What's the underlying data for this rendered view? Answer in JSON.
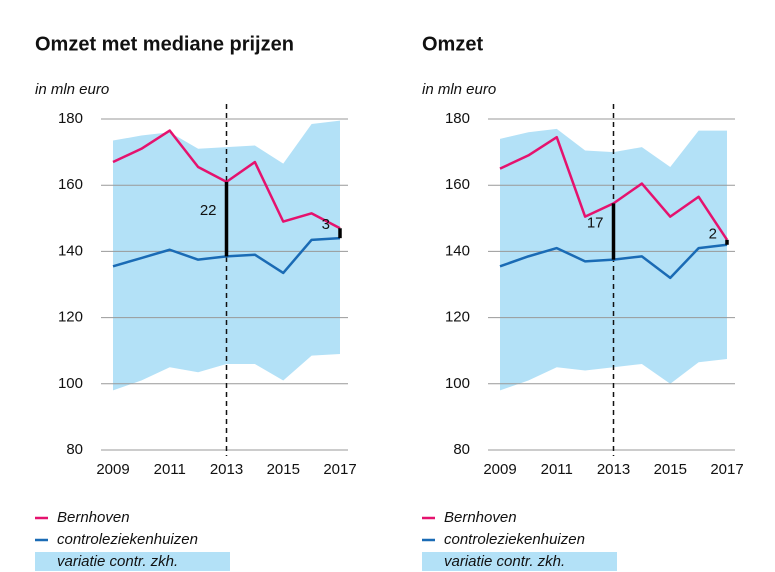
{
  "chart_data": [
    {
      "type": "line",
      "title": "Omzet met mediane prijzen",
      "y_label": "in mln euro",
      "x": [
        2009,
        2010,
        2011,
        2012,
        2013,
        2014,
        2015,
        2016,
        2017
      ],
      "xlim": [
        2009,
        2017
      ],
      "xticks": [
        2009,
        2011,
        2013,
        2015,
        2017
      ],
      "ylim": [
        80,
        180
      ],
      "yticks": [
        80,
        100,
        120,
        140,
        160,
        180
      ],
      "grid": true,
      "reference_line_x": 2013,
      "band": {
        "name": "variatie contr. zkh.",
        "color": "#b3e1f7",
        "lower": [
          98,
          101,
          105,
          103.5,
          106,
          106,
          101,
          108.5,
          109
        ],
        "upper": [
          173.5,
          175,
          176,
          171,
          171.5,
          172,
          166.5,
          178.5,
          179.5
        ]
      },
      "series": [
        {
          "name": "Bernhoven",
          "color": "#e5126e",
          "values": [
            167,
            171,
            176.5,
            165.5,
            161,
            167,
            149,
            151.5,
            147
          ]
        },
        {
          "name": "controleziekenhuizen",
          "color": "#1a6bb5",
          "values": [
            135.5,
            138,
            140.5,
            137.5,
            138.5,
            139,
            133.5,
            143.5,
            144
          ]
        }
      ],
      "annotations": [
        {
          "text": "22",
          "x": 2013
        },
        {
          "text": "3",
          "x": 2017
        }
      ]
    },
    {
      "type": "line",
      "title": "Omzet",
      "y_label": "in mln euro",
      "x": [
        2009,
        2010,
        2011,
        2012,
        2013,
        2014,
        2015,
        2016,
        2017
      ],
      "xlim": [
        2009,
        2017
      ],
      "xticks": [
        2009,
        2011,
        2013,
        2015,
        2017
      ],
      "ylim": [
        80,
        180
      ],
      "yticks": [
        80,
        100,
        120,
        140,
        160,
        180
      ],
      "grid": true,
      "reference_line_x": 2013,
      "band": {
        "name": "variatie contr. zkh.",
        "color": "#b3e1f7",
        "lower": [
          98,
          101,
          105,
          104,
          105,
          106,
          100,
          106.5,
          107.5
        ],
        "upper": [
          174,
          176,
          177,
          170.5,
          170,
          171.5,
          165.5,
          176.5,
          176.5
        ]
      },
      "series": [
        {
          "name": "Bernhoven",
          "color": "#e5126e",
          "values": [
            165,
            169,
            174.5,
            150.5,
            154.5,
            160.5,
            150.5,
            156.5,
            143.5
          ]
        },
        {
          "name": "controleziekenhuizen",
          "color": "#1a6bb5",
          "values": [
            135.5,
            138.5,
            141,
            137,
            137.5,
            138.5,
            132,
            141,
            142
          ]
        }
      ],
      "annotations": [
        {
          "text": "17",
          "x": 2013
        },
        {
          "text": "2",
          "x": 2017
        }
      ]
    }
  ]
}
